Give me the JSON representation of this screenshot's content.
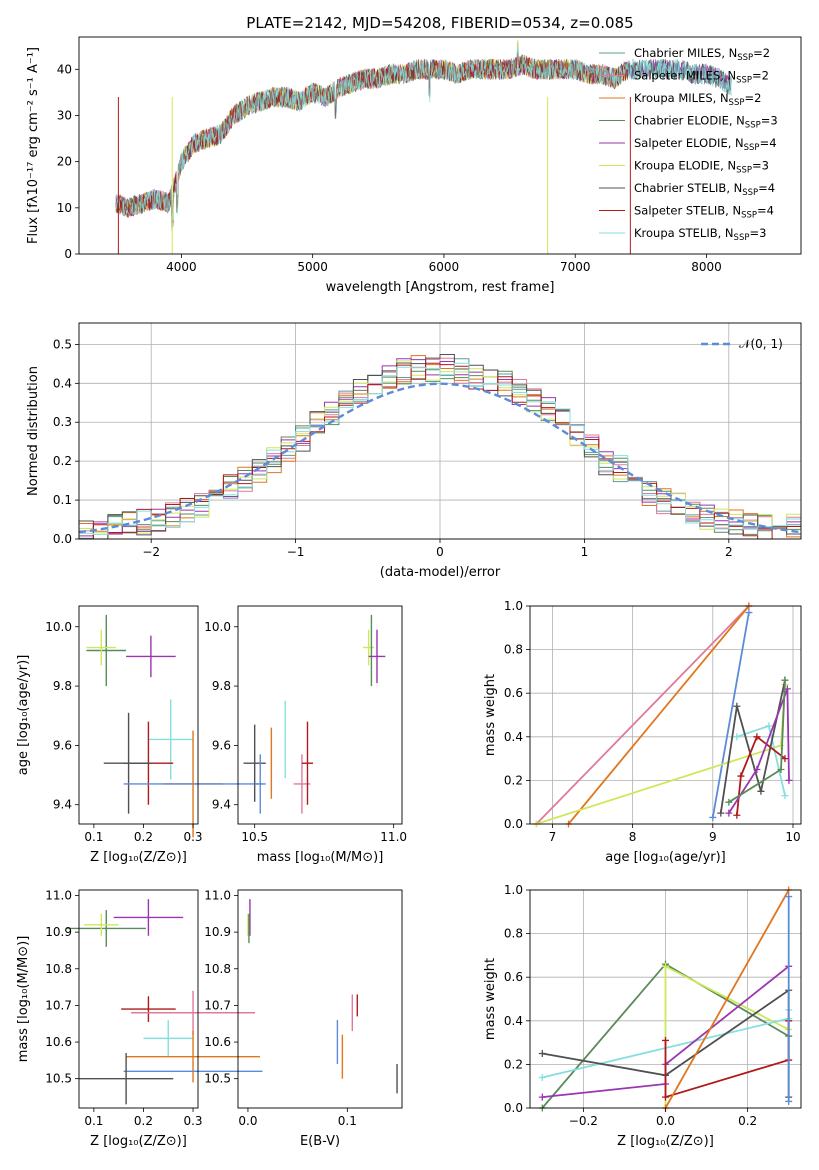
{
  "figure": {
    "title": "PLATE=2142, MJD=54208, FIBERID=0534, z=0.085"
  },
  "palette": {
    "Chabrier MILES": "#5f9c96",
    "Salpeter MILES": "#e07a9a",
    "Kroupa MILES": "#e0761e",
    "Chabrier ELODIE": "#5a8a5a",
    "Salpeter ELODIE": "#9b35b0",
    "Kroupa ELODIE": "#cde85a",
    "Chabrier STELIB": "#505050",
    "Salpeter STELIB": "#b01a1a",
    "Kroupa STELIB": "#86dede",
    "Normal": "#5b8bd9"
  },
  "chart_data": [
    {
      "id": "spectrum",
      "type": "line",
      "xlabel": "wavelength [Angstrom, rest frame]",
      "ylabel": "Flux [fλ10⁻¹⁷ erg cm⁻² s⁻¹ A⁻¹]",
      "xlim": [
        3220,
        8720
      ],
      "ylim": [
        0,
        47
      ],
      "xticks": [
        "4000",
        "5000",
        "6000",
        "7000",
        "8000"
      ],
      "yticks": [
        "0",
        "10",
        "20",
        "30",
        "40"
      ],
      "grid": false,
      "legend_position": "top-right",
      "legend": [
        {
          "label": "Chabrier MILES, N",
          "sub": "SSP",
          "tail": "=2"
        },
        {
          "label": "Salpeter MILES, N",
          "sub": "SSP",
          "tail": "=2"
        },
        {
          "label": "Kroupa MILES, N",
          "sub": "SSP",
          "tail": "=2"
        },
        {
          "label": "Chabrier ELODIE, N",
          "sub": "SSP",
          "tail": "=3"
        },
        {
          "label": "Salpeter ELODIE, N",
          "sub": "SSP",
          "tail": "=4"
        },
        {
          "label": "Kroupa ELODIE, N",
          "sub": "SSP",
          "tail": "=3"
        },
        {
          "label": "Chabrier STELIB, N",
          "sub": "SSP",
          "tail": "=4"
        },
        {
          "label": "Salpeter STELIB, N",
          "sub": "SSP",
          "tail": "=4"
        },
        {
          "label": "Kroupa STELIB, N",
          "sub": "SSP",
          "tail": "=3"
        }
      ],
      "spectrum_x": [
        3500,
        3600,
        3700,
        3800,
        3900,
        3950,
        4000,
        4100,
        4200,
        4300,
        4400,
        4500,
        4600,
        4700,
        4800,
        4900,
        5000,
        5100,
        5200,
        5300,
        5400,
        5500,
        5600,
        5700,
        5800,
        5900,
        6000,
        6100,
        6200,
        6300,
        6400,
        6500,
        6600,
        6700,
        6800,
        6900,
        7000,
        7100,
        7200,
        7300,
        7400,
        7500,
        7600,
        7700,
        7800,
        7900,
        8000,
        8100,
        8200,
        8300
      ],
      "spectrum_y": [
        11,
        10,
        11,
        12,
        11,
        15,
        20,
        24,
        25,
        26,
        30,
        32,
        33,
        34,
        34,
        33,
        35,
        34,
        36,
        37,
        38,
        38,
        39,
        39,
        40,
        40,
        40,
        39,
        40,
        40,
        40,
        40,
        41,
        40,
        40,
        40,
        40,
        39,
        39,
        38,
        40,
        40,
        40,
        40,
        40,
        39,
        39,
        38,
        36,
        36
      ],
      "model_end_wavelength": [
        8190,
        7400,
        7400,
        8190,
        8190,
        7400,
        8190,
        7400,
        8190
      ]
    },
    {
      "id": "residual-histogram",
      "type": "bar",
      "xlabel": "(data-model)/error",
      "ylabel": "Normed distribution",
      "xlim": [
        -2.5,
        2.5
      ],
      "ylim": [
        0,
        0.555
      ],
      "xticks": [
        "−2",
        "−1",
        "0",
        "1",
        "2"
      ],
      "yticks": [
        "0.0",
        "0.1",
        "0.2",
        "0.3",
        "0.4",
        "0.5"
      ],
      "grid": true,
      "legend_position": "top-right",
      "legend_label": "𝒩(0, 1)",
      "bins": [
        -2.5,
        -2.4,
        -2.3,
        -2.2,
        -2.1,
        -2.0,
        -1.9,
        -1.8,
        -1.7,
        -1.6,
        -1.5,
        -1.4,
        -1.3,
        -1.2,
        -1.1,
        -1.0,
        -0.9,
        -0.8,
        -0.7,
        -0.6,
        -0.5,
        -0.4,
        -0.3,
        -0.2,
        -0.1,
        0.0,
        0.1,
        0.2,
        0.3,
        0.4,
        0.5,
        0.6,
        0.7,
        0.8,
        0.9,
        1.0,
        1.1,
        1.2,
        1.3,
        1.4,
        1.5,
        1.6,
        1.7,
        1.8,
        1.9,
        2.0,
        2.1,
        2.2,
        2.3,
        2.4,
        2.5
      ],
      "base_density": [
        0.02,
        0.025,
        0.03,
        0.035,
        0.045,
        0.05,
        0.06,
        0.075,
        0.09,
        0.11,
        0.13,
        0.15,
        0.18,
        0.2,
        0.23,
        0.26,
        0.3,
        0.32,
        0.35,
        0.38,
        0.4,
        0.42,
        0.43,
        0.44,
        0.43,
        0.44,
        0.43,
        0.42,
        0.41,
        0.4,
        0.38,
        0.36,
        0.33,
        0.3,
        0.27,
        0.24,
        0.2,
        0.18,
        0.15,
        0.12,
        0.1,
        0.09,
        0.07,
        0.06,
        0.05,
        0.04,
        0.035,
        0.03,
        0.03,
        0.03
      ]
    },
    {
      "id": "age-vs-Z",
      "type": "scatter",
      "xlabel": "Z [log₁₀(Z/Z⊙)]",
      "ylabel": "age  [log₁₀(age/yr)]",
      "xlim": [
        0.07,
        0.31
      ],
      "ylim": [
        9.335,
        10.07
      ],
      "xticks": [
        "0.1",
        "0.2",
        "0.3"
      ],
      "yticks": [
        "9.4",
        "9.6",
        "9.8",
        "10.0"
      ],
      "points": [
        {
          "model": "Kroupa STELIB",
          "x": 0.255,
          "y": 9.62,
          "xerr": 0.045,
          "yerr": 0.135
        },
        {
          "model": "Salpeter STELIB",
          "x": 0.21,
          "y": 9.54,
          "xerr": 0.05,
          "yerr": 0.14
        },
        {
          "model": "Chabrier STELIB",
          "x": 0.17,
          "y": 9.54,
          "xerr": 0.05,
          "yerr": 0.17
        },
        {
          "model": "Kroupa MILES",
          "x": 0.3,
          "y": 9.47,
          "xerr": 0.06,
          "yerr": 0.18
        },
        {
          "model": "Normal",
          "x": 0.3,
          "y": 9.47,
          "xerr": 0.14,
          "yerr": 0.0
        },
        {
          "model": "Salpeter ELODIE",
          "x": 0.215,
          "y": 9.9,
          "xerr": 0.05,
          "yerr": 0.07
        },
        {
          "model": "Chabrier ELODIE",
          "x": 0.125,
          "y": 9.92,
          "xerr": 0.04,
          "yerr": 0.12
        },
        {
          "model": "Kroupa ELODIE",
          "x": 0.115,
          "y": 9.93,
          "xerr": 0.03,
          "yerr": 0.06
        }
      ]
    },
    {
      "id": "age-vs-mass",
      "type": "scatter",
      "xlabel": "mass [log₁₀(M/M⊙)]",
      "xlim": [
        10.44,
        11.03
      ],
      "ylim": [
        9.335,
        10.07
      ],
      "xticks": [
        "10.5",
        "11.0"
      ],
      "yticks": [
        "9.4",
        "9.6",
        "9.8",
        "10.0"
      ],
      "points": [
        {
          "model": "Chabrier STELIB",
          "x": 10.5,
          "y": 9.54,
          "xerr": 0.04,
          "yerr": 0.13
        },
        {
          "model": "Normal",
          "x": 10.52,
          "y": 9.47,
          "xerr": 0.02,
          "yerr": 0.1
        },
        {
          "model": "Kroupa MILES",
          "x": 10.56,
          "y": 9.54,
          "xerr": 0.0,
          "yerr": 0.12
        },
        {
          "model": "Kroupa STELIB",
          "x": 10.61,
          "y": 9.62,
          "xerr": 0.0,
          "yerr": 0.13
        },
        {
          "model": "Salpeter MILES",
          "x": 10.67,
          "y": 9.47,
          "xerr": 0.03,
          "yerr": 0.1
        },
        {
          "model": "Salpeter STELIB",
          "x": 10.69,
          "y": 9.54,
          "xerr": 0.02,
          "yerr": 0.14
        },
        {
          "model": "Kroupa ELODIE",
          "x": 10.91,
          "y": 9.93,
          "xerr": 0.02,
          "yerr": 0.06
        },
        {
          "model": "Chabrier ELODIE",
          "x": 10.92,
          "y": 9.92,
          "xerr": 0.0,
          "yerr": 0.12
        },
        {
          "model": "Salpeter ELODIE",
          "x": 10.94,
          "y": 9.9,
          "xerr": 0.03,
          "yerr": 0.09
        }
      ]
    },
    {
      "id": "massweight-vs-age",
      "type": "line",
      "xlabel": "age  [log₁₀(age/yr)]",
      "ylabel": "mass weight",
      "xlim": [
        6.72,
        10.1
      ],
      "ylim": [
        0,
        1
      ],
      "xticks": [
        "7",
        "8",
        "9",
        "10"
      ],
      "yticks": [
        "0.0",
        "0.2",
        "0.4",
        "0.6",
        "0.8",
        "1.0"
      ],
      "grid": true,
      "series": [
        {
          "model": "Salpeter MILES",
          "x": [
            6.8,
            9.45
          ],
          "y": [
            0.0,
            1.0
          ]
        },
        {
          "model": "Kroupa MILES",
          "x": [
            7.2,
            9.45
          ],
          "y": [
            0.0,
            1.0
          ]
        },
        {
          "model": "Normal",
          "x": [
            9.0,
            9.45
          ],
          "y": [
            0.03,
            0.97
          ]
        },
        {
          "model": "Kroupa ELODIE",
          "x": [
            6.8,
            9.85,
            9.9
          ],
          "y": [
            0.0,
            0.36,
            0.64
          ]
        },
        {
          "model": "Kroupa STELIB",
          "x": [
            9.3,
            9.7,
            9.9
          ],
          "y": [
            0.4,
            0.45,
            0.13
          ]
        },
        {
          "model": "Chabrier STELIB",
          "x": [
            9.1,
            9.3,
            9.6,
            9.9
          ],
          "y": [
            0.05,
            0.54,
            0.15,
            0.66
          ]
        },
        {
          "model": "Salpeter STELIB",
          "x": [
            9.3,
            9.35,
            9.55,
            9.9
          ],
          "y": [
            0.04,
            0.22,
            0.4,
            0.3
          ]
        },
        {
          "model": "Salpeter ELODIE",
          "x": [
            9.2,
            9.55,
            9.93,
            9.95
          ],
          "y": [
            0.05,
            0.25,
            0.62,
            0.2
          ]
        },
        {
          "model": "Chabrier ELODIE",
          "x": [
            9.2,
            9.85,
            9.9
          ],
          "y": [
            0.1,
            0.25,
            0.66
          ]
        }
      ]
    },
    {
      "id": "mass-vs-Z",
      "type": "scatter",
      "xlabel": "Z [log₁₀(Z/Z⊙)]",
      "ylabel": "mass [log₁₀(M/M⊙)]",
      "xlim": [
        0.07,
        0.31
      ],
      "ylim": [
        10.42,
        11.015
      ],
      "xticks": [
        "0.1",
        "0.2",
        "0.3"
      ],
      "yticks": [
        "10.5",
        "10.6",
        "10.7",
        "10.8",
        "10.9",
        "11.0"
      ],
      "points": [
        {
          "model": "Salpeter ELODIE",
          "x": 0.21,
          "y": 10.94,
          "xerr": 0.07,
          "yerr": 0.05
        },
        {
          "model": "Chabrier ELODIE",
          "x": 0.125,
          "y": 10.91,
          "xerr": 0.08,
          "yerr": 0.05
        },
        {
          "model": "Kroupa ELODIE",
          "x": 0.115,
          "y": 10.92,
          "xerr": 0.035,
          "yerr": 0.03
        },
        {
          "model": "Salpeter STELIB",
          "x": 0.21,
          "y": 10.69,
          "xerr": 0.055,
          "yerr": 0.035
        },
        {
          "model": "Salpeter MILES",
          "x": 0.3,
          "y": 10.68,
          "xerr": 0.125,
          "yerr": 0.06
        },
        {
          "model": "Kroupa STELIB",
          "x": 0.25,
          "y": 10.61,
          "xerr": 0.05,
          "yerr": 0.05
        },
        {
          "model": "Kroupa MILES",
          "x": 0.3,
          "y": 10.56,
          "xerr": 0.135,
          "yerr": 0.07
        },
        {
          "model": "Normal",
          "x": 0.3,
          "y": 10.52,
          "xerr": 0.14,
          "yerr": 0.0
        },
        {
          "model": "Chabrier STELIB",
          "x": 0.165,
          "y": 10.5,
          "xerr": 0.095,
          "yerr": 0.07
        }
      ]
    },
    {
      "id": "mass-vs-EBV",
      "type": "scatter",
      "xlabel": "E(B-V)",
      "xlim": [
        -0.01,
        0.155
      ],
      "ylim": [
        10.42,
        11.015
      ],
      "xticks": [
        "0.0",
        "0.1"
      ],
      "yticks": [
        "10.5",
        "10.6",
        "10.7",
        "10.8",
        "10.9",
        "11.0"
      ],
      "points": [
        {
          "model": "Salpeter ELODIE",
          "x": 0.002,
          "y": 10.94,
          "xerr": 0.0,
          "yerr": 0.05
        },
        {
          "model": "Kroupa ELODIE",
          "x": 0.0,
          "y": 10.92,
          "xerr": 0.0,
          "yerr": 0.03
        },
        {
          "model": "Chabrier ELODIE",
          "x": 0.001,
          "y": 10.91,
          "xerr": 0.0,
          "yerr": 0.04
        },
        {
          "model": "Salpeter STELIB",
          "x": 0.11,
          "y": 10.7,
          "xerr": 0.0,
          "yerr": 0.03
        },
        {
          "model": "Salpeter MILES",
          "x": 0.105,
          "y": 10.68,
          "xerr": 0.0,
          "yerr": 0.05
        },
        {
          "model": "Normal",
          "x": 0.09,
          "y": 10.6,
          "xerr": 0.0,
          "yerr": 0.06
        },
        {
          "model": "Kroupa MILES",
          "x": 0.095,
          "y": 10.56,
          "xerr": 0.0,
          "yerr": 0.06
        },
        {
          "model": "Chabrier STELIB",
          "x": 0.15,
          "y": 10.5,
          "xerr": 0.0,
          "yerr": 0.04
        }
      ]
    },
    {
      "id": "massweight-vs-Z",
      "type": "line",
      "xlabel": "Z [log₁₀(Z/Z⊙)]",
      "ylabel": "mass weight",
      "xlim": [
        -0.33,
        0.33
      ],
      "ylim": [
        0,
        1
      ],
      "xticks": [
        "−0.2",
        "0.0",
        "0.2"
      ],
      "yticks": [
        "0.0",
        "0.2",
        "0.4",
        "0.6",
        "0.8",
        "1.0"
      ],
      "grid": true,
      "series": [
        {
          "model": "Chabrier ELODIE",
          "x": [
            -0.3,
            0.0,
            0.3
          ],
          "y": [
            0.0,
            0.66,
            0.33
          ]
        },
        {
          "model": "Kroupa ELODIE",
          "x": [
            0.0,
            0.0,
            0.3
          ],
          "y": [
            0.0,
            0.65,
            0.36
          ]
        },
        {
          "model": "Kroupa STELIB",
          "x": [
            -0.3,
            0.3,
            0.3
          ],
          "y": [
            0.14,
            0.41,
            0.45
          ]
        },
        {
          "model": "Chabrier STELIB",
          "x": [
            -0.3,
            0.0,
            0.3,
            0.3
          ],
          "y": [
            0.25,
            0.15,
            0.54,
            0.05
          ]
        },
        {
          "model": "Salpeter ELODIE",
          "x": [
            -0.3,
            0.0,
            0.0,
            0.3
          ],
          "y": [
            0.05,
            0.11,
            0.2,
            0.65
          ]
        },
        {
          "model": "Salpeter STELIB",
          "x": [
            0.0,
            0.0,
            0.3,
            0.3
          ],
          "y": [
            0.31,
            0.05,
            0.22,
            0.4
          ]
        },
        {
          "model": "Kroupa MILES",
          "x": [
            0.0,
            0.3
          ],
          "y": [
            0.0,
            1.0
          ]
        },
        {
          "model": "Normal",
          "x": [
            0.3,
            0.3
          ],
          "y": [
            0.97,
            0.03
          ]
        }
      ]
    }
  ]
}
